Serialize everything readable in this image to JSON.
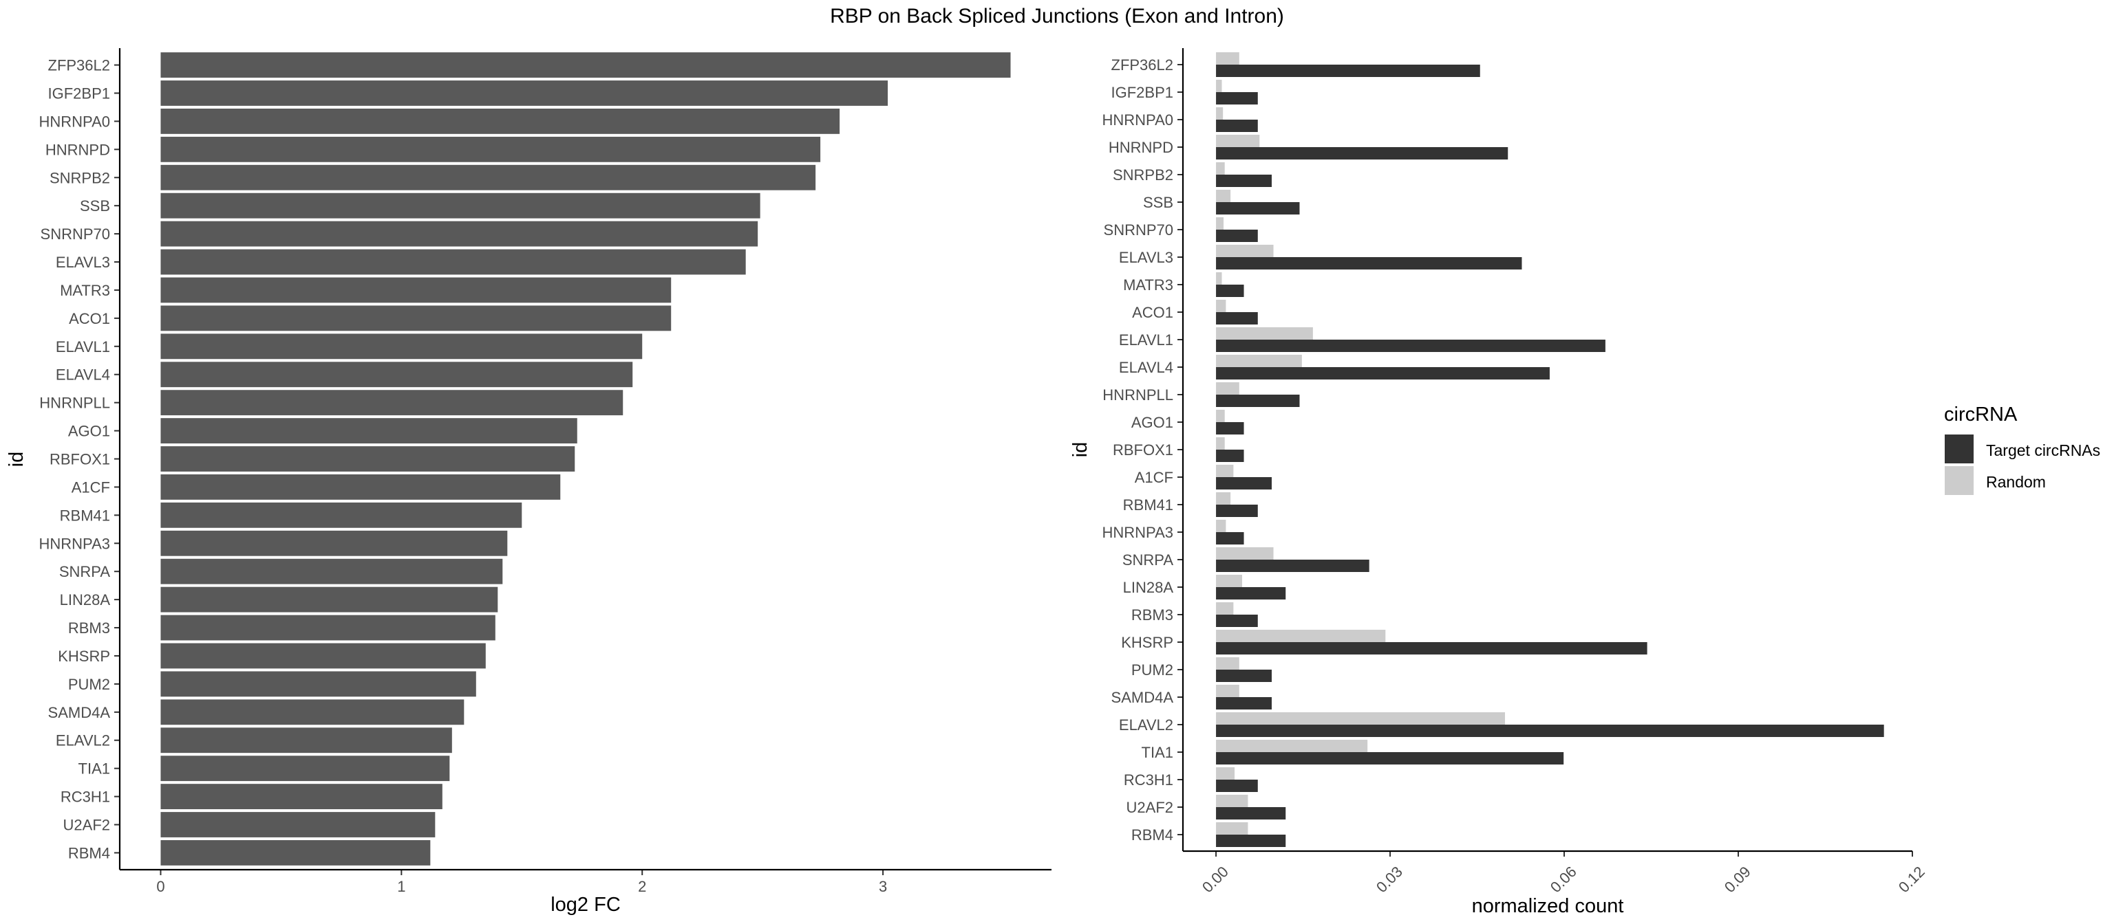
{
  "chart_data": [
    {
      "type": "bar",
      "orientation": "horizontal",
      "title": "RBP on Back Spliced Junctions (Exon and Intron)",
      "xlabel": "log2 FC",
      "ylabel": "id",
      "xlim": [
        -0.17,
        3.7
      ],
      "xticks": [
        "0",
        "1",
        "2",
        "3"
      ],
      "grid": false,
      "color": "#595959",
      "categories": [
        "ZFP36L2",
        "IGF2BP1",
        "HNRNPA0",
        "HNRNPD",
        "SNRPB2",
        "SSB",
        "SNRNP70",
        "ELAVL3",
        "MATR3",
        "ACO1",
        "ELAVL1",
        "ELAVL4",
        "HNRNPLL",
        "AGO1",
        "RBFOX1",
        "A1CF",
        "RBM41",
        "HNRNPA3",
        "SNRPA",
        "LIN28A",
        "RBM3",
        "KHSRP",
        "PUM2",
        "SAMD4A",
        "ELAVL2",
        "TIA1",
        "RC3H1",
        "U2AF2",
        "RBM4"
      ],
      "values": [
        3.53,
        3.02,
        2.82,
        2.74,
        2.72,
        2.49,
        2.48,
        2.43,
        2.12,
        2.12,
        2.0,
        1.96,
        1.92,
        1.73,
        1.72,
        1.66,
        1.5,
        1.44,
        1.42,
        1.4,
        1.39,
        1.35,
        1.31,
        1.26,
        1.21,
        1.2,
        1.17,
        1.14,
        1.12
      ]
    },
    {
      "type": "bar",
      "orientation": "horizontal",
      "grouped": true,
      "xlabel": "normalized count",
      "ylabel": "id",
      "xlim": [
        -0.0057,
        0.12
      ],
      "xticks": [
        "0.00",
        "0.03",
        "0.06",
        "0.09",
        "0.12"
      ],
      "grid": false,
      "legend": {
        "title": "circRNA",
        "position": "right"
      },
      "categories": [
        "ZFP36L2",
        "IGF2BP1",
        "HNRNPA0",
        "HNRNPD",
        "SNRPB2",
        "SSB",
        "SNRNP70",
        "ELAVL3",
        "MATR3",
        "ACO1",
        "ELAVL1",
        "ELAVL4",
        "HNRNPLL",
        "AGO1",
        "RBFOX1",
        "A1CF",
        "RBM41",
        "HNRNPA3",
        "SNRPA",
        "LIN28A",
        "RBM3",
        "KHSRP",
        "PUM2",
        "SAMD4A",
        "ELAVL2",
        "TIA1",
        "RC3H1",
        "U2AF2",
        "RBM4"
      ],
      "series": [
        {
          "name": "Target circRNAs",
          "color": "#333333",
          "values": [
            0.0455,
            0.0072,
            0.0072,
            0.0503,
            0.0096,
            0.0144,
            0.0072,
            0.0527,
            0.0048,
            0.0072,
            0.0671,
            0.0575,
            0.0144,
            0.0048,
            0.0048,
            0.0096,
            0.0072,
            0.0048,
            0.0264,
            0.012,
            0.0072,
            0.0743,
            0.0096,
            0.0096,
            0.1151,
            0.0599,
            0.0072,
            0.012,
            0.012
          ]
        },
        {
          "name": "Random",
          "color": "#cccccc",
          "values": [
            0.004,
            0.001,
            0.0012,
            0.0075,
            0.0015,
            0.0025,
            0.0013,
            0.0099,
            0.001,
            0.0017,
            0.0167,
            0.0148,
            0.004,
            0.0015,
            0.0015,
            0.003,
            0.0025,
            0.0017,
            0.0099,
            0.0045,
            0.003,
            0.0292,
            0.004,
            0.004,
            0.0498,
            0.0261,
            0.0032,
            0.0055,
            0.0055
          ]
        }
      ]
    }
  ]
}
